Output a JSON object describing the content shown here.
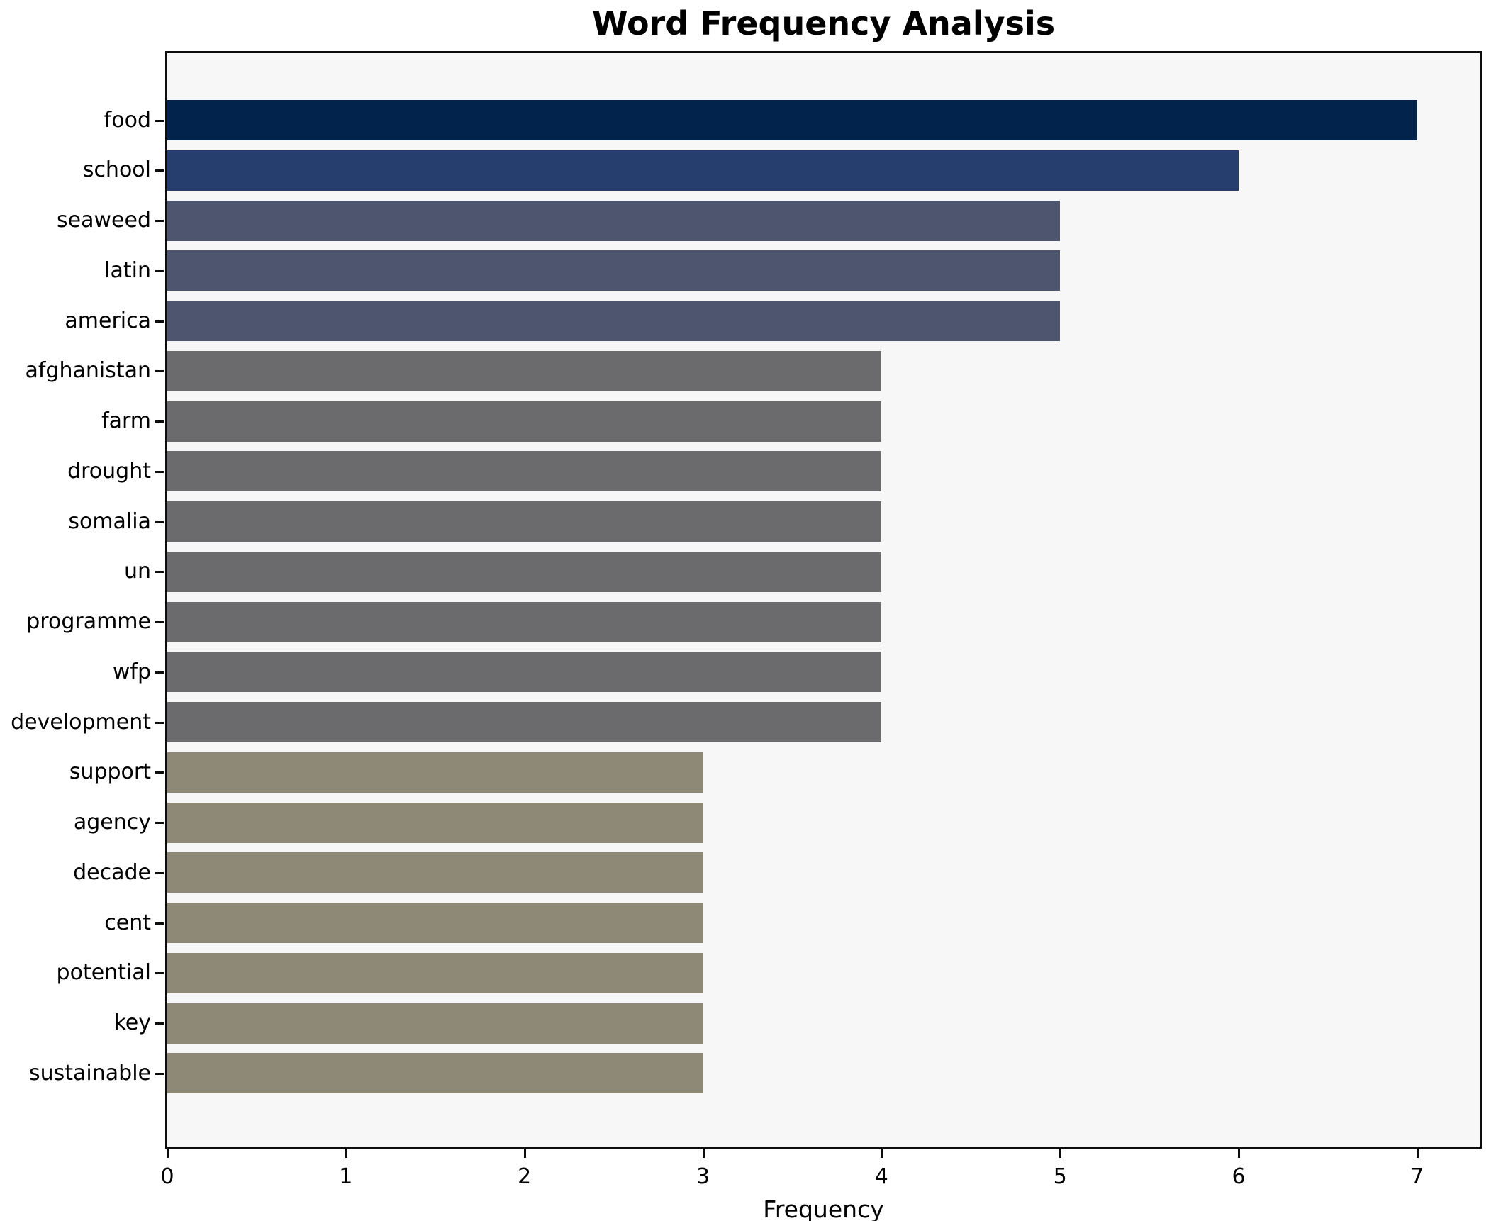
{
  "title": "Word Frequency Analysis",
  "xlabel": "Frequency",
  "chart_data": {
    "type": "bar",
    "orientation": "horizontal",
    "title": "Word Frequency Analysis",
    "xlabel": "Frequency",
    "ylabel": "",
    "categories": [
      "food",
      "school",
      "seaweed",
      "latin",
      "america",
      "afghanistan",
      "farm",
      "drought",
      "somalia",
      "un",
      "programme",
      "wfp",
      "development",
      "support",
      "agency",
      "decade",
      "cent",
      "potential",
      "key",
      "sustainable"
    ],
    "values": [
      7,
      6,
      5,
      5,
      5,
      4,
      4,
      4,
      4,
      4,
      4,
      4,
      4,
      3,
      3,
      3,
      3,
      3,
      3,
      3
    ],
    "bar_colors": [
      "#02234c",
      "#253e6d",
      "#4d566e",
      "#4d566e",
      "#4d566e",
      "#6b6b6e",
      "#6b6b6e",
      "#6b6b6e",
      "#6b6b6e",
      "#6b6b6e",
      "#6b6b6e",
      "#6b6b6e",
      "#6b6b6e",
      "#8e8876",
      "#8e8876",
      "#8e8876",
      "#8e8876",
      "#8e8876",
      "#8e8876",
      "#8e8876"
    ],
    "value_color_map": {
      "7": "#02234c",
      "6": "#253e6d",
      "5": "#4d566e",
      "4": "#6b6b6e",
      "3": "#8e8876"
    },
    "xticks": [
      0,
      1,
      2,
      3,
      4,
      5,
      6,
      7
    ],
    "xlim": [
      0,
      7.35
    ],
    "grid": false,
    "legend": null,
    "plot_background": "#f7f7f7",
    "figure_background": "#ffffff"
  }
}
